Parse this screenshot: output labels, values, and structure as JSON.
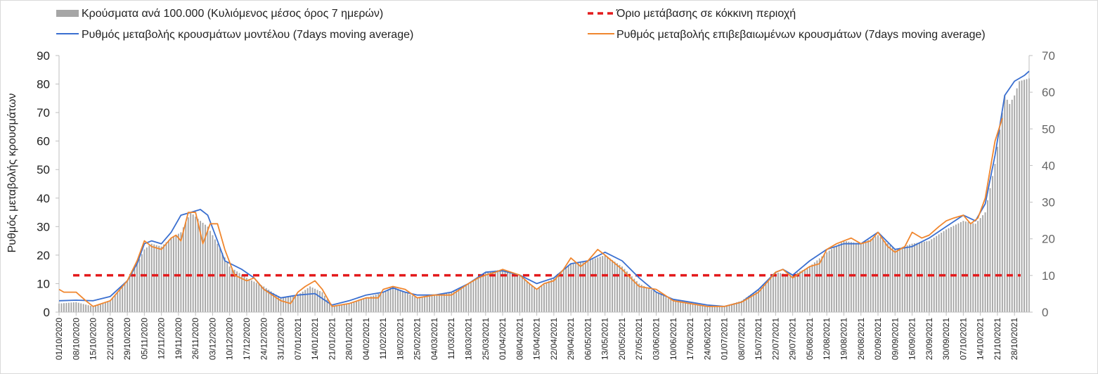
{
  "chart_data": {
    "type": "bar+line",
    "title": "",
    "ylabel": "Ρυθμός μεταβολής κρουσμάτων",
    "xlabel": "",
    "ylim_left": [
      0,
      90
    ],
    "yticks_left": [
      0,
      10,
      20,
      30,
      40,
      50,
      60,
      70,
      80,
      90
    ],
    "ylim_right": [
      0,
      70
    ],
    "yticks_right": [
      0,
      10,
      20,
      30,
      40,
      50,
      60,
      70
    ],
    "grid": false,
    "legend": [
      {
        "key": "bars",
        "label": "Κρούσματα ανά 100.000 (Κυλιόμενος μέσος όρος 7 ημερών)",
        "color": "#a6a6a6"
      },
      {
        "key": "threshold",
        "label": "Όριο μετάβασης σε κόκκινη περιοχή",
        "color": "#e31a1c"
      },
      {
        "key": "model",
        "label": "Ρυθμός μεταβολής κρουσμάτων μοντέλου (7days moving average)",
        "color": "#3a6fd0"
      },
      {
        "key": "confirmed",
        "label": "Ρυθμός μεταβολής επιβεβαιωμένων κρουσμάτων (7days moving average)",
        "color": "#f0862e"
      }
    ],
    "x_start": "2020-10-01",
    "x_end": "2021-11-03",
    "x_ticks": [
      "01/10/2020",
      "08/10/2020",
      "15/10/2020",
      "22/10/2020",
      "29/10/2020",
      "05/11/2020",
      "12/11/2020",
      "19/11/2020",
      "26/11/2020",
      "03/12/2020",
      "10/12/2020",
      "17/12/2020",
      "24/12/2020",
      "31/12/2020",
      "07/01/2021",
      "14/01/2021",
      "21/01/2021",
      "28/01/2021",
      "04/02/2021",
      "11/02/2021",
      "18/02/2021",
      "25/02/2021",
      "04/03/2021",
      "11/03/2021",
      "18/03/2021",
      "25/03/2021",
      "01/04/2021",
      "08/04/2021",
      "15/04/2021",
      "22/04/2021",
      "29/04/2021",
      "06/05/2021",
      "13/05/2021",
      "20/05/2021",
      "27/05/2021",
      "03/06/2021",
      "10/06/2021",
      "17/06/2021",
      "24/06/2021",
      "01/07/2021",
      "08/07/2021",
      "15/07/2021",
      "22/07/2021",
      "29/07/2021",
      "05/08/2021",
      "12/08/2021",
      "19/08/2021",
      "26/08/2021",
      "02/09/2021",
      "09/09/2021",
      "16/09/2021",
      "23/09/2021",
      "30/09/2021",
      "07/10/2021",
      "14/10/2021",
      "21/10/2021",
      "28/10/2021"
    ],
    "threshold_left": 12.9,
    "series": [
      {
        "key": "bars",
        "axis": "left",
        "points": [
          [
            "2020-10-01",
            3
          ],
          [
            "2020-10-08",
            3.5
          ],
          [
            "2020-10-15",
            2
          ],
          [
            "2020-10-22",
            4
          ],
          [
            "2020-10-29",
            11
          ],
          [
            "2020-11-02",
            17
          ],
          [
            "2020-11-05",
            22
          ],
          [
            "2020-11-08",
            24
          ],
          [
            "2020-11-12",
            23
          ],
          [
            "2020-11-16",
            26
          ],
          [
            "2020-11-20",
            28
          ],
          [
            "2020-11-24",
            35
          ],
          [
            "2020-11-28",
            32
          ],
          [
            "2020-12-01",
            30
          ],
          [
            "2020-12-05",
            24
          ],
          [
            "2020-12-10",
            16
          ],
          [
            "2020-12-17",
            12
          ],
          [
            "2020-12-24",
            9
          ],
          [
            "2020-12-31",
            5
          ],
          [
            "2021-01-07",
            6
          ],
          [
            "2021-01-12",
            9
          ],
          [
            "2021-01-17",
            7
          ],
          [
            "2021-01-21",
            2
          ],
          [
            "2021-01-28",
            3
          ],
          [
            "2021-02-04",
            5
          ],
          [
            "2021-02-11",
            7
          ],
          [
            "2021-02-15",
            9
          ],
          [
            "2021-02-20",
            7
          ],
          [
            "2021-02-25",
            5
          ],
          [
            "2021-03-04",
            6
          ],
          [
            "2021-03-11",
            7
          ],
          [
            "2021-03-18",
            10
          ],
          [
            "2021-03-25",
            14
          ],
          [
            "2021-04-01",
            15
          ],
          [
            "2021-04-08",
            13
          ],
          [
            "2021-04-15",
            8
          ],
          [
            "2021-04-22",
            12
          ],
          [
            "2021-04-29",
            17
          ],
          [
            "2021-05-06",
            18
          ],
          [
            "2021-05-13",
            20
          ],
          [
            "2021-05-20",
            16
          ],
          [
            "2021-05-27",
            10
          ],
          [
            "2021-06-03",
            7
          ],
          [
            "2021-06-10",
            4
          ],
          [
            "2021-06-17",
            3
          ],
          [
            "2021-06-24",
            2
          ],
          [
            "2021-07-01",
            2
          ],
          [
            "2021-07-08",
            4
          ],
          [
            "2021-07-15",
            8
          ],
          [
            "2021-07-22",
            14
          ],
          [
            "2021-07-29",
            13
          ],
          [
            "2021-08-05",
            16
          ],
          [
            "2021-08-12",
            21
          ],
          [
            "2021-08-19",
            25
          ],
          [
            "2021-08-26",
            24
          ],
          [
            "2021-09-02",
            27
          ],
          [
            "2021-09-09",
            22
          ],
          [
            "2021-09-16",
            24
          ],
          [
            "2021-09-23",
            25
          ],
          [
            "2021-09-30",
            29
          ],
          [
            "2021-10-07",
            32
          ],
          [
            "2021-10-12",
            31
          ],
          [
            "2021-10-16",
            35
          ],
          [
            "2021-10-20",
            52
          ],
          [
            "2021-10-24",
            76
          ],
          [
            "2021-10-26",
            73
          ],
          [
            "2021-10-28",
            76
          ],
          [
            "2021-10-30",
            81
          ],
          [
            "2021-11-03",
            82
          ]
        ]
      },
      {
        "key": "model",
        "axis": "left",
        "points": [
          [
            "2020-10-01",
            4
          ],
          [
            "2020-10-08",
            4.2
          ],
          [
            "2020-10-15",
            4
          ],
          [
            "2020-10-22",
            5.5
          ],
          [
            "2020-10-29",
            11
          ],
          [
            "2020-11-02",
            17
          ],
          [
            "2020-11-05",
            24
          ],
          [
            "2020-11-08",
            25
          ],
          [
            "2020-11-12",
            24
          ],
          [
            "2020-11-16",
            28
          ],
          [
            "2020-11-20",
            34
          ],
          [
            "2020-11-24",
            35
          ],
          [
            "2020-11-28",
            36
          ],
          [
            "2020-12-01",
            34
          ],
          [
            "2020-12-05",
            25
          ],
          [
            "2020-12-08",
            18
          ],
          [
            "2020-12-15",
            15
          ],
          [
            "2020-12-20",
            12
          ],
          [
            "2020-12-24",
            8
          ],
          [
            "2020-12-31",
            5
          ],
          [
            "2021-01-07",
            6
          ],
          [
            "2021-01-14",
            6.5
          ],
          [
            "2021-01-21",
            2.5
          ],
          [
            "2021-01-28",
            4
          ],
          [
            "2021-02-04",
            6
          ],
          [
            "2021-02-11",
            7
          ],
          [
            "2021-02-15",
            8.5
          ],
          [
            "2021-02-20",
            7
          ],
          [
            "2021-02-25",
            6
          ],
          [
            "2021-03-04",
            6
          ],
          [
            "2021-03-11",
            7
          ],
          [
            "2021-03-18",
            10
          ],
          [
            "2021-03-25",
            14
          ],
          [
            "2021-04-01",
            14.5
          ],
          [
            "2021-04-08",
            13
          ],
          [
            "2021-04-15",
            10
          ],
          [
            "2021-04-22",
            12
          ],
          [
            "2021-04-29",
            17
          ],
          [
            "2021-05-06",
            18
          ],
          [
            "2021-05-13",
            21
          ],
          [
            "2021-05-20",
            18
          ],
          [
            "2021-05-27",
            12
          ],
          [
            "2021-06-03",
            7
          ],
          [
            "2021-06-10",
            4.5
          ],
          [
            "2021-06-17",
            3.5
          ],
          [
            "2021-06-24",
            2.5
          ],
          [
            "2021-07-01",
            2
          ],
          [
            "2021-07-08",
            3.5
          ],
          [
            "2021-07-15",
            8
          ],
          [
            "2021-07-22",
            14
          ],
          [
            "2021-07-25",
            15
          ],
          [
            "2021-07-29",
            13
          ],
          [
            "2021-08-05",
            18
          ],
          [
            "2021-08-12",
            22
          ],
          [
            "2021-08-19",
            24
          ],
          [
            "2021-08-26",
            24
          ],
          [
            "2021-09-02",
            28
          ],
          [
            "2021-09-09",
            22
          ],
          [
            "2021-09-16",
            23
          ],
          [
            "2021-09-23",
            26
          ],
          [
            "2021-09-30",
            30
          ],
          [
            "2021-10-07",
            34
          ],
          [
            "2021-10-12",
            32
          ],
          [
            "2021-10-16",
            38
          ],
          [
            "2021-10-20",
            55
          ],
          [
            "2021-10-24",
            76
          ],
          [
            "2021-10-28",
            81
          ],
          [
            "2021-11-01",
            83
          ],
          [
            "2021-11-03",
            84.5
          ]
        ]
      },
      {
        "key": "confirmed",
        "axis": "left",
        "points": [
          [
            "2020-10-01",
            8
          ],
          [
            "2020-10-03",
            7
          ],
          [
            "2020-10-08",
            7
          ],
          [
            "2020-10-12",
            4
          ],
          [
            "2020-10-15",
            2
          ],
          [
            "2020-10-22",
            4
          ],
          [
            "2020-10-29",
            11
          ],
          [
            "2020-11-02",
            18
          ],
          [
            "2020-11-05",
            25
          ],
          [
            "2020-11-08",
            23
          ],
          [
            "2020-11-12",
            22
          ],
          [
            "2020-11-16",
            26
          ],
          [
            "2020-11-18",
            27
          ],
          [
            "2020-11-20",
            25
          ],
          [
            "2020-11-23",
            35
          ],
          [
            "2020-11-26",
            35
          ],
          [
            "2020-11-29",
            24
          ],
          [
            "2020-12-02",
            31
          ],
          [
            "2020-12-05",
            31
          ],
          [
            "2020-12-08",
            22
          ],
          [
            "2020-12-12",
            13
          ],
          [
            "2020-12-17",
            11
          ],
          [
            "2020-12-20",
            12
          ],
          [
            "2020-12-24",
            8
          ],
          [
            "2020-12-31",
            4
          ],
          [
            "2021-01-04",
            3
          ],
          [
            "2021-01-07",
            7
          ],
          [
            "2021-01-10",
            9
          ],
          [
            "2021-01-14",
            11
          ],
          [
            "2021-01-17",
            8
          ],
          [
            "2021-01-21",
            2
          ],
          [
            "2021-01-28",
            3
          ],
          [
            "2021-02-04",
            5
          ],
          [
            "2021-02-09",
            5
          ],
          [
            "2021-02-11",
            8
          ],
          [
            "2021-02-15",
            9
          ],
          [
            "2021-02-20",
            8
          ],
          [
            "2021-02-25",
            5
          ],
          [
            "2021-03-04",
            6
          ],
          [
            "2021-03-11",
            6
          ],
          [
            "2021-03-18",
            10
          ],
          [
            "2021-03-22",
            12
          ],
          [
            "2021-03-25",
            13
          ],
          [
            "2021-03-29",
            14
          ],
          [
            "2021-04-01",
            15
          ],
          [
            "2021-04-08",
            13
          ],
          [
            "2021-04-12",
            10
          ],
          [
            "2021-04-15",
            8
          ],
          [
            "2021-04-18",
            10
          ],
          [
            "2021-04-22",
            11
          ],
          [
            "2021-04-26",
            15
          ],
          [
            "2021-04-29",
            19
          ],
          [
            "2021-05-03",
            16
          ],
          [
            "2021-05-06",
            18
          ],
          [
            "2021-05-10",
            22
          ],
          [
            "2021-05-13",
            20
          ],
          [
            "2021-05-20",
            15
          ],
          [
            "2021-05-27",
            9
          ],
          [
            "2021-06-03",
            8
          ],
          [
            "2021-06-10",
            4
          ],
          [
            "2021-06-17",
            3
          ],
          [
            "2021-06-24",
            2
          ],
          [
            "2021-07-01",
            2
          ],
          [
            "2021-07-08",
            3.5
          ],
          [
            "2021-07-15",
            7
          ],
          [
            "2021-07-19",
            11
          ],
          [
            "2021-07-22",
            14
          ],
          [
            "2021-07-25",
            15
          ],
          [
            "2021-07-29",
            12
          ],
          [
            "2021-08-05",
            16
          ],
          [
            "2021-08-09",
            17
          ],
          [
            "2021-08-12",
            22
          ],
          [
            "2021-08-16",
            24
          ],
          [
            "2021-08-19",
            25
          ],
          [
            "2021-08-22",
            26
          ],
          [
            "2021-08-26",
            24
          ],
          [
            "2021-08-30",
            25
          ],
          [
            "2021-09-02",
            28
          ],
          [
            "2021-09-06",
            23
          ],
          [
            "2021-09-09",
            21
          ],
          [
            "2021-09-13",
            23
          ],
          [
            "2021-09-16",
            28
          ],
          [
            "2021-09-20",
            26
          ],
          [
            "2021-09-23",
            27
          ],
          [
            "2021-09-27",
            30
          ],
          [
            "2021-09-30",
            32
          ],
          [
            "2021-10-03",
            33
          ],
          [
            "2021-10-07",
            34
          ],
          [
            "2021-10-10",
            31
          ],
          [
            "2021-10-13",
            33
          ],
          [
            "2021-10-16",
            40
          ],
          [
            "2021-10-20",
            60
          ],
          [
            "2021-10-23",
            68
          ]
        ]
      }
    ]
  }
}
